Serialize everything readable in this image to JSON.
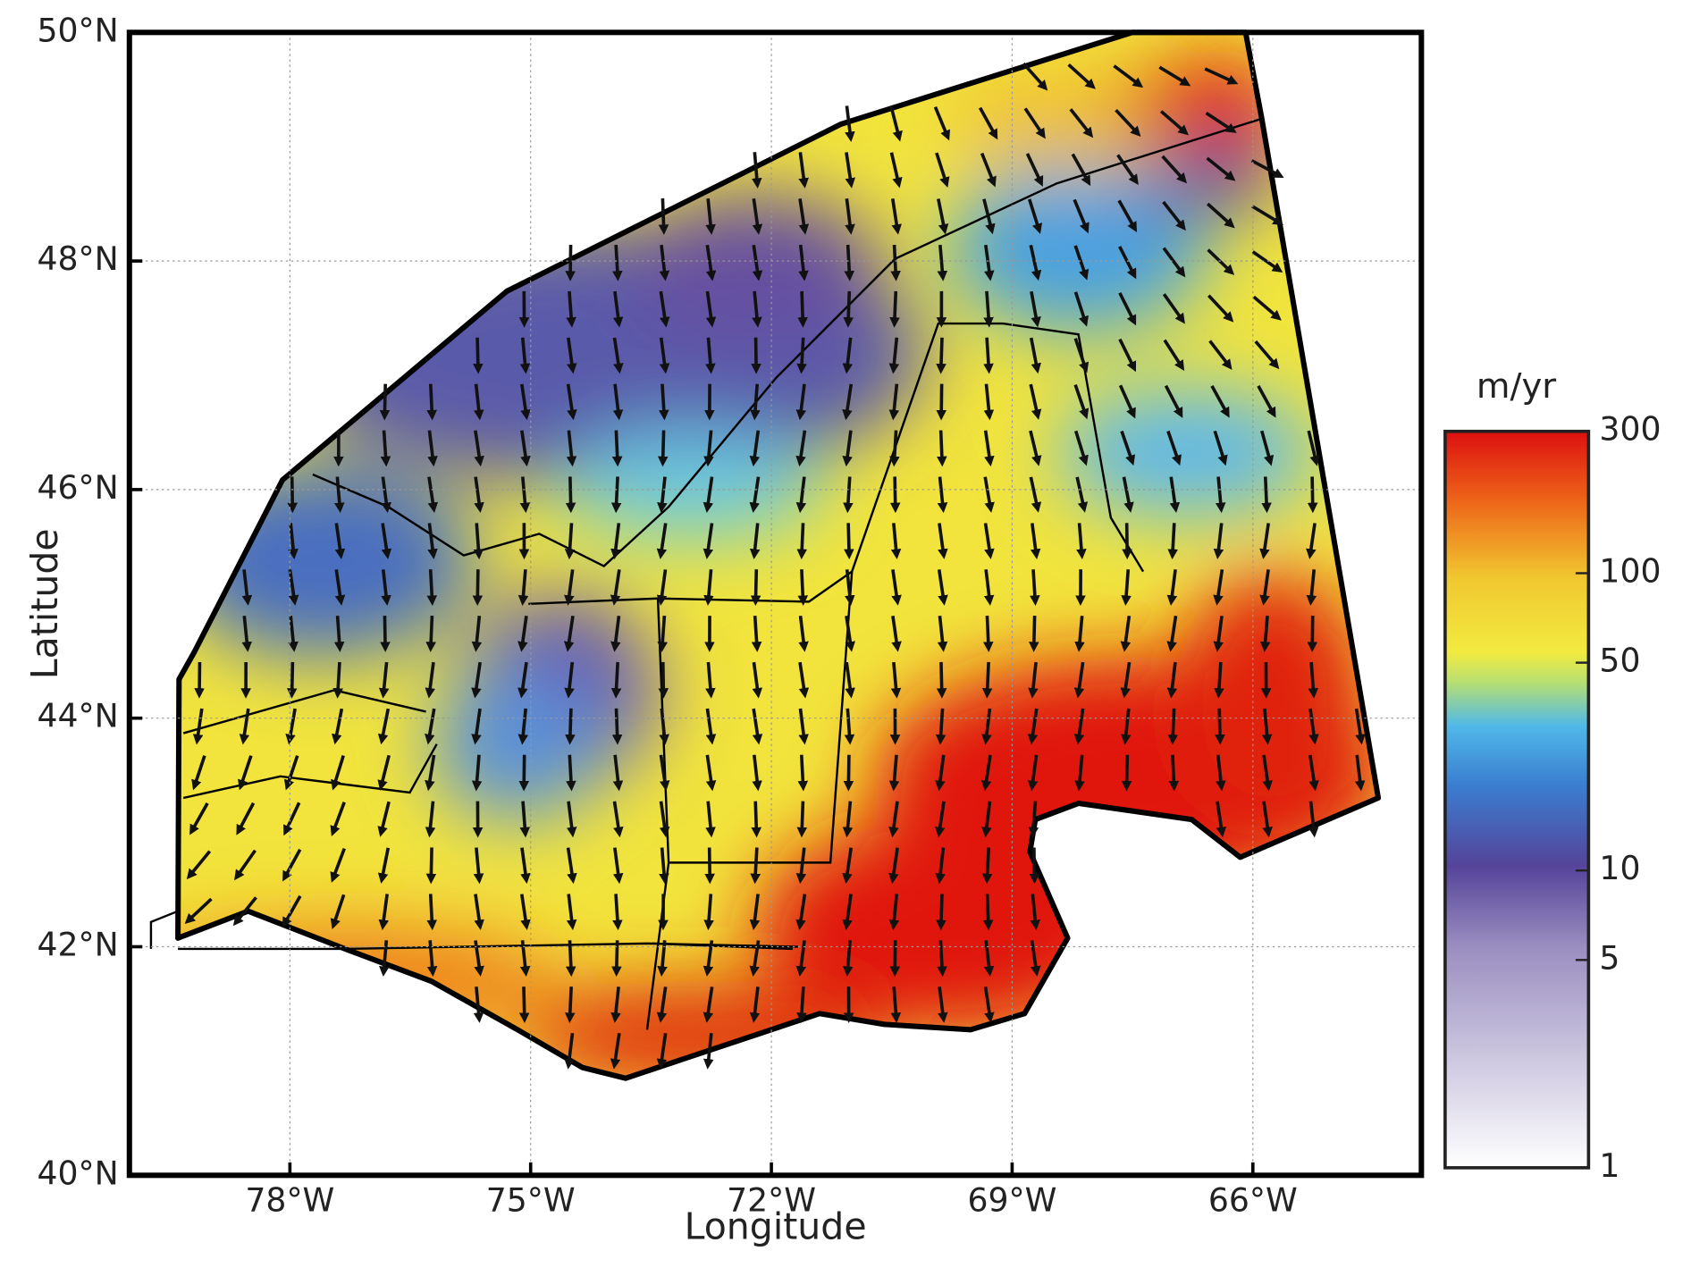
{
  "chart_data": {
    "type": "map",
    "xlabel": "Longitude",
    "ylabel": "Latitude",
    "xlim": [
      -80,
      -63.9
    ],
    "ylim": [
      40,
      50
    ],
    "xticks": [
      {
        "value": -78,
        "label": "78°W"
      },
      {
        "value": -75,
        "label": "75°W"
      },
      {
        "value": -72,
        "label": "72°W"
      },
      {
        "value": -69,
        "label": "69°W"
      },
      {
        "value": -66,
        "label": "66°W"
      }
    ],
    "yticks": [
      {
        "value": 40,
        "label": "40°N"
      },
      {
        "value": 42,
        "label": "42°N"
      },
      {
        "value": 44,
        "label": "44°N"
      },
      {
        "value": 46,
        "label": "46°N"
      },
      {
        "value": 48,
        "label": "48°N"
      },
      {
        "value": 50,
        "label": "50°N"
      }
    ],
    "grid": true,
    "colorbar": {
      "label": "m/yr",
      "lim": [
        1,
        300
      ],
      "log": true,
      "ticks": [
        1,
        5,
        10,
        50,
        100,
        300
      ]
    }
  }
}
